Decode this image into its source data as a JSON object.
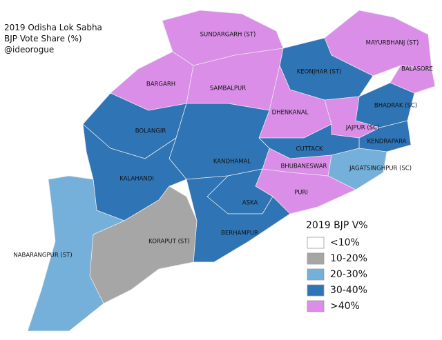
{
  "title": [
    "2019 Odisha Lok Sabha",
    "BJP Vote Share (%)",
    "@ideorogue"
  ],
  "legend": {
    "title": "2019 BJP V%",
    "items": [
      {
        "label": "<10%",
        "color": "#ffffff"
      },
      {
        "label": "10-20%",
        "color": "#a6a6a6"
      },
      {
        "label": "20-30%",
        "color": "#74b0d9"
      },
      {
        "label": "30-40%",
        "color": "#2f74b5"
      },
      {
        "label": ">40%",
        "color": "#da8ee8"
      }
    ]
  },
  "regions": [
    {
      "name": "SUNDARGARH (ST)",
      "color": "#da8ee8"
    },
    {
      "name": "MAYURBHANJ (ST)",
      "color": "#da8ee8"
    },
    {
      "name": "BALASORE",
      "color": "#da8ee8"
    },
    {
      "name": "KEONJHAR (ST)",
      "color": "#2f74b5"
    },
    {
      "name": "BARGARH",
      "color": "#da8ee8"
    },
    {
      "name": "SAMBALPUR",
      "color": "#da8ee8"
    },
    {
      "name": "DHENKANAL",
      "color": "#da8ee8"
    },
    {
      "name": "BHADRAK (SC)",
      "color": "#2f74b5"
    },
    {
      "name": "JAJPUR (SC)",
      "color": "#da8ee8"
    },
    {
      "name": "KENDRAPARA",
      "color": "#2f74b5"
    },
    {
      "name": "CUTTACK",
      "color": "#2f74b5"
    },
    {
      "name": "JAGATSINGHPUR (SC)",
      "color": "#74b0d9"
    },
    {
      "name": "BHUBANESWAR",
      "color": "#da8ee8"
    },
    {
      "name": "PURI",
      "color": "#da8ee8"
    },
    {
      "name": "BOLANGIR",
      "color": "#2f74b5"
    },
    {
      "name": "KANDHAMAL",
      "color": "#2f74b5"
    },
    {
      "name": "KALAHANDI",
      "color": "#2f74b5"
    },
    {
      "name": "ASKA",
      "color": "#2f74b5"
    },
    {
      "name": "BERHAMPUR",
      "color": "#2f74b5"
    },
    {
      "name": "KORAPUT (ST)",
      "color": "#a6a6a6"
    },
    {
      "name": "NABARANGPUR (ST)",
      "color": "#74b0d9"
    }
  ]
}
